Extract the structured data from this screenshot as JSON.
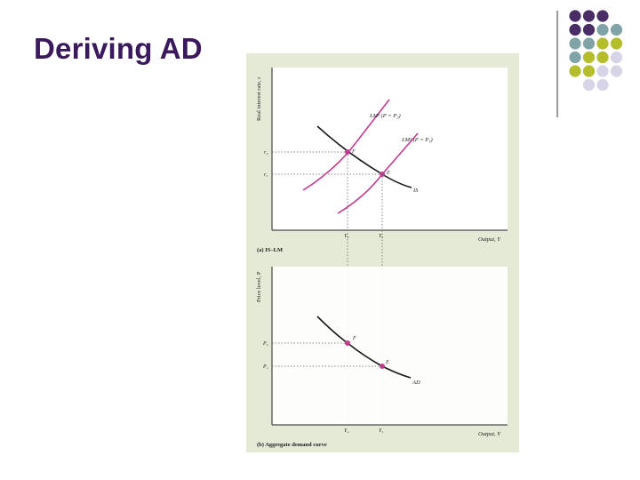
{
  "slide": {
    "title": "Deriving AD"
  },
  "colors": {
    "title": "#3a1a5c",
    "panel_bg": "#e4ead6",
    "curve_magenta": "#c23a8e",
    "curve_black": "#1a1a1a",
    "deco_purple": "#4a2d64",
    "deco_teal": "#7fa3a6",
    "deco_olive": "#b4bd2a",
    "deco_lavender": "#d6d4e6"
  },
  "decoration": {
    "dot_grid": [
      [
        "purple",
        "purple",
        "purple",
        "empty"
      ],
      [
        "purple",
        "purple",
        "teal",
        "teal"
      ],
      [
        "teal",
        "teal",
        "olive",
        "olive"
      ],
      [
        "teal",
        "olive",
        "olive",
        "lavender"
      ],
      [
        "olive",
        "olive",
        "lavender",
        "lavender"
      ],
      [
        "empty",
        "lavender",
        "lavender",
        "empty"
      ]
    ]
  },
  "figure": {
    "top_panel": {
      "y_axis_label": "Real interest rate, r",
      "x_axis_label": "Output, Y",
      "caption": "(a) IS–LM",
      "lm_high_label": "LM² (P = P₂)",
      "lm_low_label": "LM¹ (P = P₁)",
      "is_label": "IS",
      "point_high_label": "F",
      "point_low_label": "E",
      "r_high_label": "r₂",
      "r_low_label": "r₁",
      "y_low_label": "Y₂",
      "y_high_label": "Y₁"
    },
    "bottom_panel": {
      "y_axis_label": "Price level, P",
      "x_axis_label": "Output, Y",
      "caption": "(b) Aggregate demand curve",
      "ad_label": "AD",
      "point_high_label": "F",
      "point_low_label": "E",
      "p_high_label": "P₂",
      "p_low_label": "P₁",
      "y_low_label": "Y₂",
      "y_high_label": "Y₁"
    }
  }
}
